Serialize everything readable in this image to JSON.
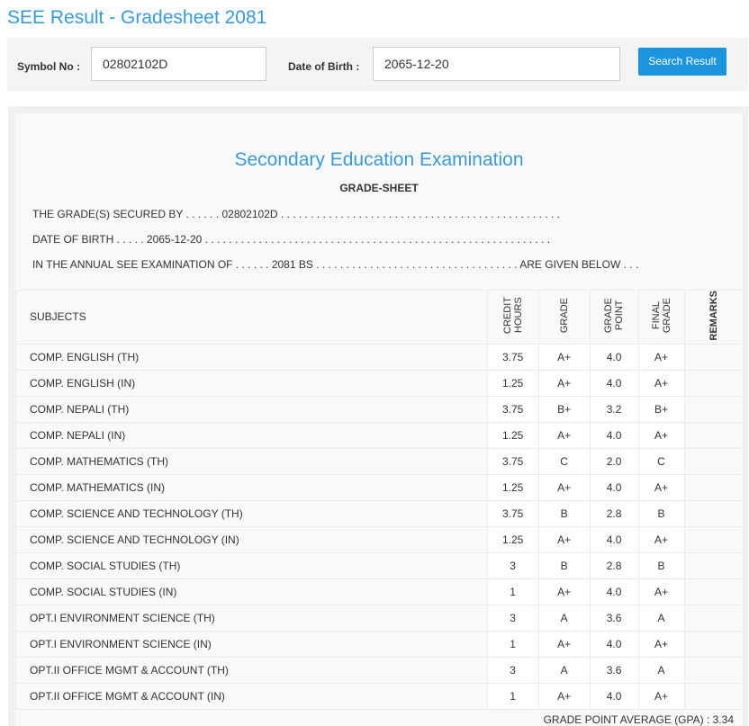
{
  "page": {
    "title": "SEE Result - Gradesheet 2081"
  },
  "search": {
    "symbol_label": "Symbol No :",
    "symbol_value": "02802102D",
    "dob_label": "Date of Birth :",
    "dob_value": "2065-12-20",
    "button_label": "Search Result"
  },
  "sheet": {
    "exam_title": "Secondary Education Examination",
    "subtitle": "GRADE-SHEET",
    "secured_line": "THE GRADE(S) SECURED BY . . . . . . 02802102D . . . . . . . . . . . . . . . . . . . . . . . . . . . . . . . . . . . . . . . . . . . . . . .",
    "dob_line": "DATE OF BIRTH . . . . . 2065-12-20 . . . . . . . . . . . . . . . . . . . . . . . . . . . . . . . . . . . . . . . . . . . . . . . . . . . . . . . . . .",
    "exam_line": "IN THE ANNUAL SEE EXAMINATION OF . . . . . . 2081 BS . . . . . . . . . . . . . . . . . . . . . . . . . . . . . . . . . . ARE GIVEN BELOW . . .",
    "columns": {
      "subjects": "SUBJECTS",
      "credit_hours": "CREDIT\nHOURS",
      "grade": "GRADE",
      "grade_point": "GRADE\nPOINT",
      "final_grade": "FINAL\nGRADE",
      "remarks": "REMARKS"
    },
    "rows": [
      {
        "subject": "COMP. ENGLISH (TH)",
        "credit_hours": "3.75",
        "grade": "A+",
        "grade_point": "4.0",
        "final_grade": "A+",
        "remarks": ""
      },
      {
        "subject": "COMP. ENGLISH (IN)",
        "credit_hours": "1.25",
        "grade": "A+",
        "grade_point": "4.0",
        "final_grade": "A+",
        "remarks": ""
      },
      {
        "subject": "COMP. NEPALI (TH)",
        "credit_hours": "3.75",
        "grade": "B+",
        "grade_point": "3.2",
        "final_grade": "B+",
        "remarks": ""
      },
      {
        "subject": "COMP. NEPALI (IN)",
        "credit_hours": "1.25",
        "grade": "A+",
        "grade_point": "4.0",
        "final_grade": "A+",
        "remarks": ""
      },
      {
        "subject": "COMP. MATHEMATICS (TH)",
        "credit_hours": "3.75",
        "grade": "C",
        "grade_point": "2.0",
        "final_grade": "C",
        "remarks": ""
      },
      {
        "subject": "COMP. MATHEMATICS (IN)",
        "credit_hours": "1.25",
        "grade": "A+",
        "grade_point": "4.0",
        "final_grade": "A+",
        "remarks": ""
      },
      {
        "subject": "COMP. SCIENCE AND TECHNOLOGY (TH)",
        "credit_hours": "3.75",
        "grade": "B",
        "grade_point": "2.8",
        "final_grade": "B",
        "remarks": ""
      },
      {
        "subject": "COMP. SCIENCE AND TECHNOLOGY (IN)",
        "credit_hours": "1.25",
        "grade": "A+",
        "grade_point": "4.0",
        "final_grade": "A+",
        "remarks": ""
      },
      {
        "subject": "COMP. SOCIAL STUDIES (TH)",
        "credit_hours": "3",
        "grade": "B",
        "grade_point": "2.8",
        "final_grade": "B",
        "remarks": ""
      },
      {
        "subject": "COMP. SOCIAL STUDIES (IN)",
        "credit_hours": "1",
        "grade": "A+",
        "grade_point": "4.0",
        "final_grade": "A+",
        "remarks": ""
      },
      {
        "subject": "OPT.I ENVIRONMENT SCIENCE (TH)",
        "credit_hours": "3",
        "grade": "A",
        "grade_point": "3.6",
        "final_grade": "A",
        "remarks": ""
      },
      {
        "subject": "OPT.I ENVIRONMENT SCIENCE (IN)",
        "credit_hours": "1",
        "grade": "A+",
        "grade_point": "4.0",
        "final_grade": "A+",
        "remarks": ""
      },
      {
        "subject": "OPT.II OFFICE MGMT & ACCOUNT (TH)",
        "credit_hours": "3",
        "grade": "A",
        "grade_point": "3.6",
        "final_grade": "A",
        "remarks": ""
      },
      {
        "subject": "OPT.II OFFICE MGMT & ACCOUNT (IN)",
        "credit_hours": "1",
        "grade": "A+",
        "grade_point": "4.0",
        "final_grade": "A+",
        "remarks": ""
      }
    ],
    "gpa_line": "GRADE POINT AVERAGE (GPA) : 3.34"
  },
  "colors": {
    "accent": "#3a9ad9",
    "button": "#1b95e0"
  }
}
